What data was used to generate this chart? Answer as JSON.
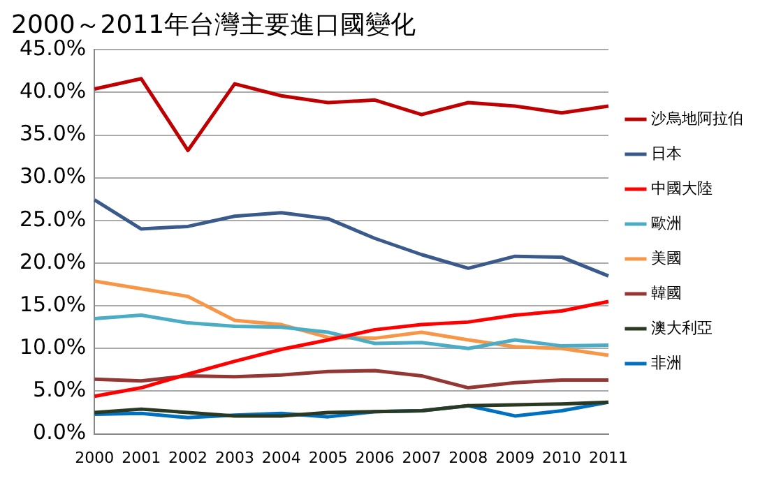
{
  "chart_data": {
    "type": "line",
    "title": "2000～2011年台灣主要進口國變化",
    "categories": [
      "2000",
      "2001",
      "2002",
      "2003",
      "2004",
      "2005",
      "2006",
      "2007",
      "2008",
      "2009",
      "2010",
      "2011"
    ],
    "series": [
      {
        "name": "沙烏地阿拉伯",
        "color": "#c00000",
        "values": [
          40.4,
          41.6,
          33.2,
          41.0,
          39.6,
          38.8,
          39.1,
          37.4,
          38.8,
          38.4,
          37.6,
          38.4
        ]
      },
      {
        "name": "日本",
        "color": "#3a5a8c",
        "values": [
          27.4,
          24.0,
          24.3,
          25.5,
          25.9,
          25.2,
          22.9,
          21.0,
          19.4,
          20.8,
          20.7,
          18.5
        ]
      },
      {
        "name": "中國大陸",
        "color": "#ff0000",
        "values": [
          4.4,
          5.4,
          7.0,
          8.5,
          9.9,
          11.0,
          12.2,
          12.8,
          13.1,
          13.9,
          14.4,
          15.5
        ]
      },
      {
        "name": "歐洲",
        "color": "#4bacc6",
        "values": [
          13.5,
          13.9,
          13.0,
          12.6,
          12.5,
          11.9,
          10.6,
          10.7,
          10.0,
          11.0,
          10.3,
          10.4
        ]
      },
      {
        "name": "美國",
        "color": "#f79646",
        "values": [
          17.9,
          17.0,
          16.1,
          13.3,
          12.8,
          11.3,
          11.2,
          11.9,
          11.0,
          10.2,
          10.0,
          9.2
        ]
      },
      {
        "name": "韓國",
        "color": "#943634",
        "values": [
          6.4,
          6.2,
          6.8,
          6.7,
          6.9,
          7.3,
          7.4,
          6.8,
          5.4,
          6.0,
          6.3,
          6.3
        ]
      },
      {
        "name": "澳大利亞",
        "color": "#2a3a22",
        "values": [
          2.5,
          2.9,
          2.5,
          2.1,
          2.1,
          2.5,
          2.6,
          2.7,
          3.3,
          3.4,
          3.5,
          3.7
        ]
      },
      {
        "name": "非洲",
        "color": "#0070c0",
        "values": [
          2.3,
          2.4,
          1.9,
          2.2,
          2.4,
          2.0,
          2.6,
          2.7,
          3.3,
          2.1,
          2.7,
          3.7
        ]
      }
    ],
    "ylim": [
      0,
      45
    ],
    "yticks": [
      {
        "value": 0,
        "label": "0.0%"
      },
      {
        "value": 5,
        "label": "5.0%"
      },
      {
        "value": 10,
        "label": "10.0%"
      },
      {
        "value": 15,
        "label": "15.0%"
      },
      {
        "value": 20,
        "label": "20.0%"
      },
      {
        "value": 25,
        "label": "25.0%"
      },
      {
        "value": 30,
        "label": "30.0%"
      },
      {
        "value": 35,
        "label": "35.0%"
      },
      {
        "value": 40,
        "label": "40.0%"
      },
      {
        "value": 45,
        "label": "45.0%"
      }
    ],
    "grid": "y",
    "legend": "right",
    "marker": "none",
    "line_style": "solid"
  }
}
